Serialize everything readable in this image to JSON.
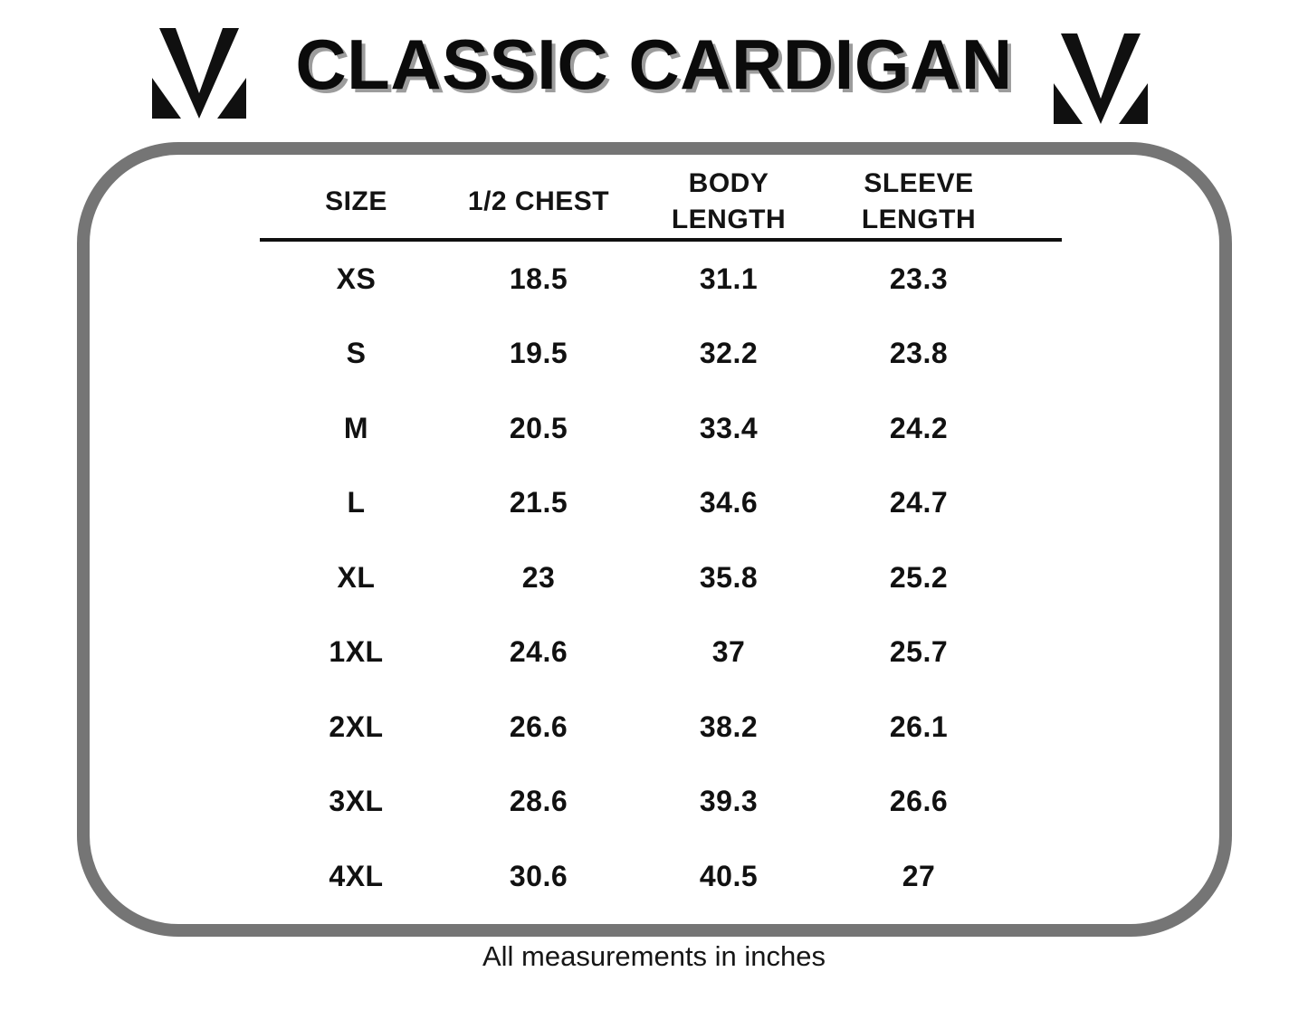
{
  "title": {
    "text": "CLASSIC CARDIGAN"
  },
  "brand": {
    "logo": "m-monogram-logo",
    "logo_color": "#101010"
  },
  "colors": {
    "background": "#ffffff",
    "text": "#111111",
    "title_shadow": "#9c9c9c",
    "box_border": "#757575"
  },
  "table_display": {
    "headers": [
      "SIZE",
      "1/2 CHEST",
      "BODY\nLENGTH",
      "SLEEVE\nLENGTH"
    ]
  },
  "chart_data": {
    "type": "table",
    "title": "CLASSIC CARDIGAN",
    "columns": [
      "SIZE",
      "1/2 CHEST",
      "BODY LENGTH",
      "SLEEVE LENGTH"
    ],
    "rows": [
      [
        "XS",
        18.5,
        31.1,
        23.3
      ],
      [
        "S",
        19.5,
        32.2,
        23.8
      ],
      [
        "M",
        20.5,
        33.4,
        24.2
      ],
      [
        "L",
        21.5,
        34.6,
        24.7
      ],
      [
        "XL",
        23,
        35.8,
        25.2
      ],
      [
        "1XL",
        24.6,
        37,
        25.7
      ],
      [
        "2XL",
        26.6,
        38.2,
        26.1
      ],
      [
        "3XL",
        28.6,
        39.3,
        26.6
      ],
      [
        "4XL",
        30.6,
        40.5,
        27
      ]
    ],
    "units": "inches",
    "note": "All measurements in inches"
  },
  "footer": {
    "note": "All measurements in inches"
  }
}
